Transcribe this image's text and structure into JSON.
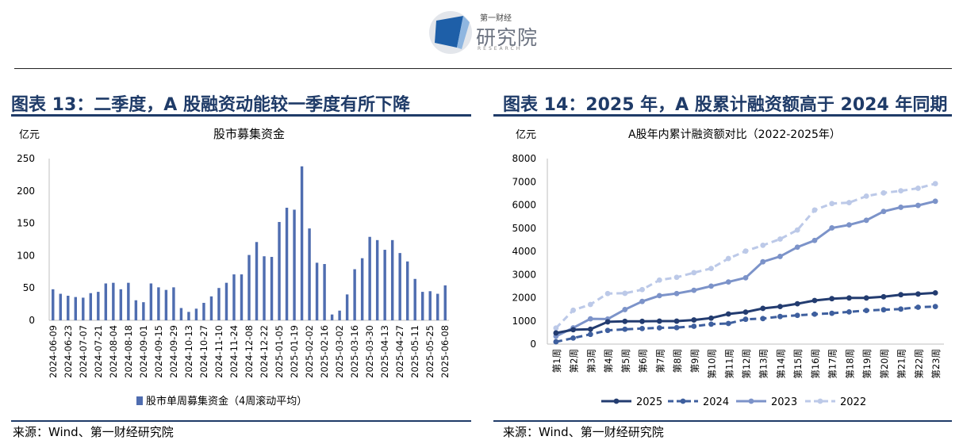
{
  "logo": {
    "top": "第一财经",
    "main": "研究院",
    "sub": "RESEARCH"
  },
  "left": {
    "heading": "图表 13：二季度，A 股融资动能较一季度有所下降",
    "source": "来源：Wind、第一财经研究院"
  },
  "right": {
    "heading": "图表 14：2025 年，A 股累计融资额高于 2024 年同期",
    "source": "来源：Wind、第一财经研究院"
  },
  "chart_data": [
    {
      "type": "bar",
      "title": "股市募集资金",
      "ylabel": "亿元",
      "ylim": [
        0,
        250
      ],
      "yticks": [
        0,
        50,
        100,
        150,
        200,
        250
      ],
      "legend": "bottom",
      "grid": false,
      "color": "#4f6db0",
      "xtick_labels": [
        "2024-06-09",
        "2024-06-23",
        "2024-07-07",
        "2024-07-21",
        "2024-08-04",
        "2024-08-18",
        "2024-09-01",
        "2024-09-15",
        "2024-09-29",
        "2024-10-13",
        "2024-10-27",
        "2024-11-10",
        "2024-11-24",
        "2024-12-08",
        "2024-12-22",
        "2025-01-05",
        "2025-01-19",
        "2025-02-02",
        "2025-02-16",
        "2025-03-02",
        "2025-03-16",
        "2025-03-30",
        "2025-04-13",
        "2025-04-27",
        "2025-05-11",
        "2025-05-25",
        "2025-06-08"
      ],
      "series": [
        {
          "name": "股市单周募集资金（4周滚动平均）",
          "values": [
            48,
            41,
            38,
            36,
            35,
            42,
            44,
            57,
            58,
            48,
            58,
            31,
            28,
            57,
            51,
            47,
            51,
            19,
            13,
            18,
            27,
            37,
            50,
            58,
            71,
            71,
            101,
            121,
            99,
            98,
            152,
            174,
            171,
            238,
            142,
            89,
            87,
            9,
            15,
            40,
            79,
            96,
            129,
            124,
            109,
            124,
            104,
            91,
            64,
            44,
            45,
            41,
            54
          ]
        }
      ]
    },
    {
      "type": "line",
      "title": "A股年内累计融资额对比（2022-2025年）",
      "ylabel": "亿元",
      "ylim": [
        0,
        8000
      ],
      "yticks": [
        0,
        1000,
        2000,
        3000,
        4000,
        5000,
        6000,
        7000,
        8000
      ],
      "legend": "bottom",
      "grid": false,
      "categories": [
        "第1周",
        "第2周",
        "第3周",
        "第4周",
        "第5周",
        "第6周",
        "第7周",
        "第8周",
        "第9周",
        "第10周",
        "第11周",
        "第12周",
        "第13周",
        "第14周",
        "第15周",
        "第16周",
        "第17周",
        "第18周",
        "第19周",
        "第20周",
        "第21周",
        "第22周",
        "第23周"
      ],
      "series": [
        {
          "name": "2025",
          "color": "#233c70",
          "dash": false,
          "values": [
            480,
            620,
            640,
            960,
            980,
            980,
            990,
            990,
            1040,
            1120,
            1300,
            1380,
            1540,
            1620,
            1740,
            1880,
            1960,
            1990,
            1990,
            2040,
            2130,
            2160,
            2210
          ]
        },
        {
          "name": "2024",
          "color": "#3e5f9e",
          "dash": true,
          "values": [
            100,
            260,
            420,
            590,
            640,
            670,
            700,
            710,
            770,
            860,
            890,
            1070,
            1100,
            1190,
            1240,
            1290,
            1330,
            1390,
            1450,
            1480,
            1510,
            1590,
            1620
          ]
        },
        {
          "name": "2023",
          "color": "#7c93c9",
          "dash": false,
          "values": [
            340,
            700,
            1090,
            1080,
            1490,
            1840,
            2090,
            2180,
            2320,
            2500,
            2680,
            2860,
            3550,
            3780,
            4180,
            4470,
            5010,
            5140,
            5340,
            5720,
            5900,
            5980,
            6160
          ]
        },
        {
          "name": "2022",
          "color": "#bcc9e8",
          "dash": true,
          "values": [
            690,
            1460,
            1710,
            2180,
            2190,
            2350,
            2760,
            2880,
            3080,
            3260,
            3690,
            4010,
            4260,
            4530,
            4920,
            5780,
            6060,
            6100,
            6380,
            6520,
            6610,
            6720,
            6920
          ]
        }
      ]
    }
  ]
}
